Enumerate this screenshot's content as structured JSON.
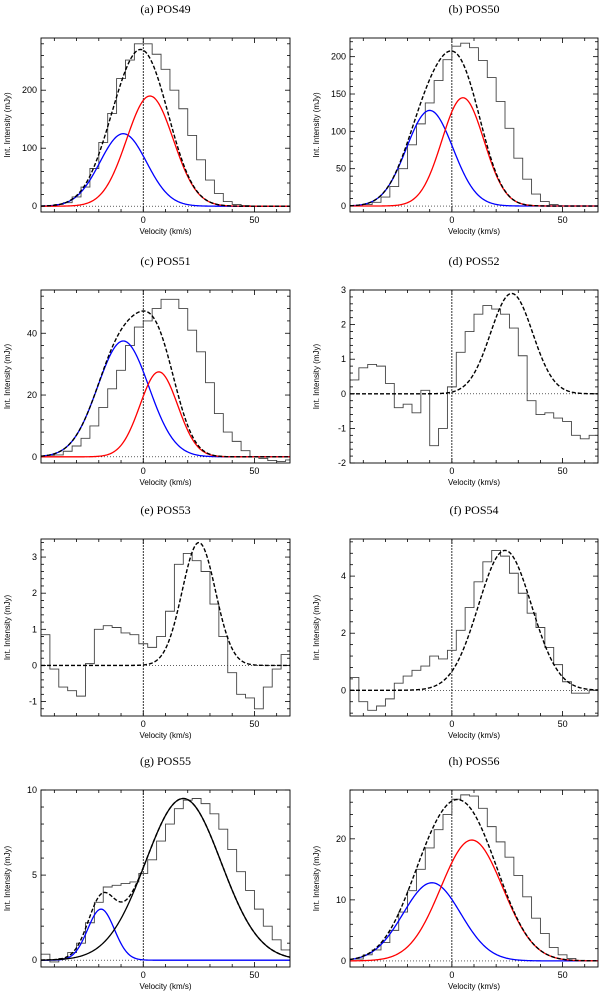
{
  "figure": {
    "xlabel": "Velocity (km/s)",
    "ylabel": "Int. Intensity (mJy)"
  },
  "chart_data": [
    {
      "type": "line",
      "title": "(a) POS49",
      "xlabel": "Velocity (km/s)",
      "ylabel": "Int. Intensity (mJy)",
      "xlim": [
        -46,
        66
      ],
      "ylim": [
        -10,
        290
      ],
      "xticks": [
        0,
        50
      ],
      "yticks": [
        0,
        100,
        200
      ],
      "vline": 0,
      "observed": {
        "start": -40,
        "width": 4,
        "values": [
          3,
          6,
          16,
          33,
          65,
          110,
          160,
          220,
          252,
          280,
          280,
          262,
          236,
          200,
          168,
          122,
          80,
          45,
          22,
          8,
          3,
          1,
          0,
          0,
          0,
          0,
          0
        ]
      },
      "components": [
        {
          "name": "blue component",
          "color": "#0000ff",
          "amp": 125,
          "center": -9,
          "sigma": 10.5
        },
        {
          "name": "red component",
          "color": "#ff0000",
          "amp": 190,
          "center": 3,
          "sigma": 10.5
        }
      ],
      "total_fit": true
    },
    {
      "type": "line",
      "title": "(b) POS50",
      "xlabel": "Velocity (km/s)",
      "ylabel": "Int. Intensity (mJy)",
      "xlim": [
        -46,
        66
      ],
      "ylim": [
        -8,
        225
      ],
      "xticks": [
        0,
        50
      ],
      "yticks": [
        0,
        50,
        100,
        150,
        200
      ],
      "vline": 0,
      "observed": {
        "start": -40,
        "width": 4,
        "values": [
          2,
          5,
          12,
          26,
          50,
          82,
          110,
          138,
          168,
          196,
          214,
          218,
          212,
          195,
          172,
          140,
          104,
          64,
          36,
          16,
          6,
          2,
          0,
          0,
          0,
          0,
          0
        ]
      },
      "components": [
        {
          "name": "blue component",
          "color": "#0000ff",
          "amp": 128,
          "center": -10,
          "sigma": 10.5
        },
        {
          "name": "red component",
          "color": "#ff0000",
          "amp": 145,
          "center": 5,
          "sigma": 9.5
        }
      ],
      "total_fit": true
    },
    {
      "type": "line",
      "title": "(c) POS51",
      "xlabel": "Velocity (km/s)",
      "ylabel": "Int. Intensity (mJy)",
      "xlim": [
        -46,
        66
      ],
      "ylim": [
        -2,
        54
      ],
      "xticks": [
        0,
        50
      ],
      "yticks": [
        0,
        20,
        40
      ],
      "vline": 0,
      "observed": {
        "start": -44,
        "width": 4,
        "values": [
          0.5,
          0.6,
          1.8,
          3.5,
          6,
          10,
          16,
          22,
          28,
          36,
          42,
          44,
          48,
          51,
          51,
          48,
          41,
          34,
          24,
          14,
          8,
          5,
          2,
          0,
          -0.5,
          -1.2,
          -1.5,
          -1,
          0
        ]
      },
      "components": [
        {
          "name": "blue component",
          "color": "#0000ff",
          "amp": 37.5,
          "center": -9,
          "sigma": 11.5
        },
        {
          "name": "red component",
          "color": "#ff0000",
          "amp": 27.5,
          "center": 7,
          "sigma": 8.5
        }
      ],
      "total_fit": true
    },
    {
      "type": "line",
      "title": "(d) POS52",
      "xlabel": "Velocity (km/s)",
      "ylabel": "Int. Intensity (mJy)",
      "xlim": [
        -46,
        66
      ],
      "ylim": [
        -2,
        3
      ],
      "xticks": [
        0,
        50
      ],
      "yticks": [
        -2,
        -1,
        0,
        1,
        2,
        3
      ],
      "vline": 0,
      "observed": {
        "start": -46,
        "width": 4,
        "values": [
          0.4,
          0.75,
          0.85,
          0.8,
          0.3,
          -0.4,
          -0.3,
          -0.55,
          0.1,
          -1.5,
          -1.0,
          0.2,
          1.2,
          1.8,
          2.3,
          2.55,
          2.45,
          2.3,
          1.9,
          1.1,
          -0.2,
          -0.6,
          -0.55,
          -0.7,
          -0.8,
          -1.2,
          -1.3,
          -1.2
        ]
      },
      "components": [
        {
          "name": "fit",
          "color": "#000000",
          "amp": 2.9,
          "center": 27,
          "sigma": 9.5
        }
      ],
      "total_fit": true
    },
    {
      "type": "line",
      "title": "(e) POS53",
      "xlabel": "Velocity (km/s)",
      "ylabel": "Int. Intensity (mJy)",
      "xlim": [
        -46,
        66
      ],
      "ylim": [
        -1.4,
        3.5
      ],
      "xticks": [
        0,
        50
      ],
      "yticks": [
        -1,
        0,
        1,
        2,
        3
      ],
      "vline": 0,
      "observed": {
        "start": -46,
        "width": 4,
        "values": [
          0.85,
          -0.1,
          -0.6,
          -0.7,
          -0.85,
          0.05,
          1.0,
          1.1,
          1.05,
          0.9,
          0.85,
          0.6,
          0.5,
          0.8,
          1.5,
          2.8,
          3.1,
          2.9,
          2.6,
          1.7,
          0.8,
          -0.2,
          -0.8,
          -0.9,
          -1.2,
          -0.6,
          -0.1,
          0.3
        ]
      },
      "components": [
        {
          "name": "fit",
          "color": "#000000",
          "amp": 3.4,
          "center": 25,
          "sigma": 7.5
        }
      ],
      "total_fit": true
    },
    {
      "type": "line",
      "title": "(f) POS54",
      "xlabel": "Velocity (km/s)",
      "ylabel": "Int. Intensity (mJy)",
      "xlim": [
        -46,
        66
      ],
      "ylim": [
        -0.9,
        5.3
      ],
      "xticks": [
        0,
        50
      ],
      "yticks": [
        0,
        2,
        4
      ],
      "vline": 0,
      "observed": {
        "start": -46,
        "width": 4,
        "values": [
          0.45,
          -0.4,
          -0.7,
          -0.55,
          -0.3,
          0.25,
          0.5,
          0.7,
          0.85,
          1.2,
          1.1,
          1.4,
          2.1,
          2.9,
          3.8,
          4.5,
          4.9,
          4.7,
          4.1,
          3.4,
          2.7,
          2.2,
          1.5,
          0.9,
          0.3,
          -0.1,
          -0.1,
          0.0
        ]
      },
      "components": [
        {
          "name": "fit",
          "color": "#000000",
          "amp": 4.9,
          "center": 24,
          "sigma": 12
        }
      ],
      "total_fit": true
    },
    {
      "type": "line",
      "title": "(g) POS55",
      "xlabel": "Velocity (km/s)",
      "ylabel": "Int. Intensity (mJy)",
      "xlim": [
        -46,
        66
      ],
      "ylim": [
        -0.4,
        10
      ],
      "xticks": [
        0,
        50
      ],
      "yticks": [
        0,
        5,
        10
      ],
      "vline": 0,
      "observed": {
        "start": -46,
        "width": 4,
        "values": [
          0.35,
          -0.1,
          0.1,
          0.45,
          1.0,
          2.2,
          3.4,
          4.3,
          4.4,
          4.5,
          4.6,
          5.1,
          5.9,
          7.0,
          8.0,
          8.9,
          9.4,
          9.5,
          9.2,
          8.6,
          7.7,
          6.5,
          5.2,
          4.1,
          3.0,
          2.0,
          1.2,
          0.6,
          0.2
        ]
      },
      "components": [
        {
          "name": "blue component",
          "color": "#0000ff",
          "amp": 3.0,
          "center": -19,
          "sigma": 6
        },
        {
          "name": "red component",
          "color": "#000000",
          "amp": 9.5,
          "center": 18,
          "sigma": 17
        }
      ],
      "total_fit": true
    },
    {
      "type": "line",
      "title": "(h) POS56",
      "xlabel": "Velocity (km/s)",
      "ylabel": "Int. Intensity (mJy)",
      "xlim": [
        -46,
        66
      ],
      "ylim": [
        -1,
        28
      ],
      "xticks": [
        0,
        50
      ],
      "yticks": [
        0,
        10,
        20
      ],
      "vline": 0,
      "observed": {
        "start": -44,
        "width": 4,
        "values": [
          0.3,
          1.0,
          1.8,
          3.0,
          5.0,
          8.0,
          11.5,
          15.0,
          18.5,
          21.5,
          24.0,
          26.5,
          27.2,
          27.0,
          25.0,
          22.0,
          19.5,
          17.0,
          14.0,
          10.5,
          7.0,
          4.5,
          2.2,
          1.0,
          0.4,
          0.1,
          0.0,
          0.0
        ]
      },
      "components": [
        {
          "name": "blue component",
          "color": "#0000ff",
          "amp": 12.8,
          "center": -9,
          "sigma": 13
        },
        {
          "name": "red component",
          "color": "#ff0000",
          "amp": 19.8,
          "center": 9,
          "sigma": 14
        }
      ],
      "total_fit": true
    }
  ]
}
